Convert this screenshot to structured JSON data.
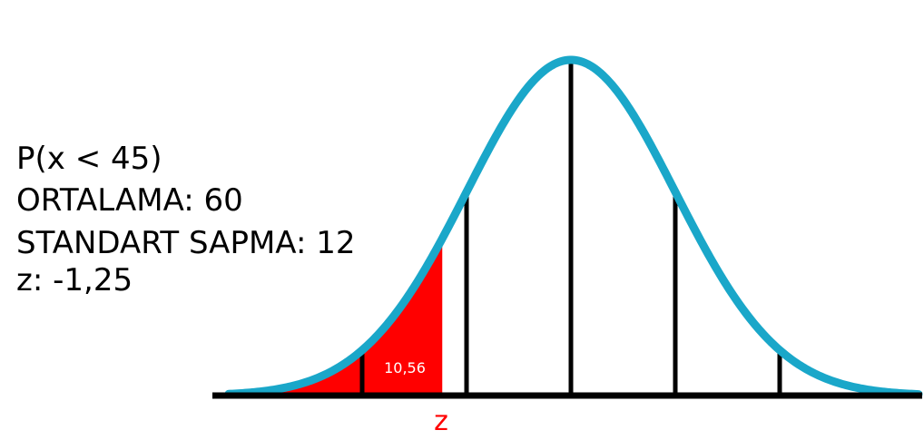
{
  "info": {
    "probability": "P(x < 45)",
    "mean": "ORTALAMA: 60",
    "std_dev": "STANDART SAPMA: 12",
    "z_value": "z: -1,25"
  },
  "shaded_area_label": "10,56",
  "z_marker_label": "z",
  "colors": {
    "curve": "#1aa7c9",
    "shaded": "#ff0000",
    "axis": "#000000",
    "z_label": "#ff0000",
    "area_label": "#ffffff"
  },
  "curve": {
    "mean": 60,
    "sd": 12,
    "z_cut": -1.25,
    "reference_lines_sd": [
      -2,
      -1,
      0,
      1,
      2
    ]
  }
}
